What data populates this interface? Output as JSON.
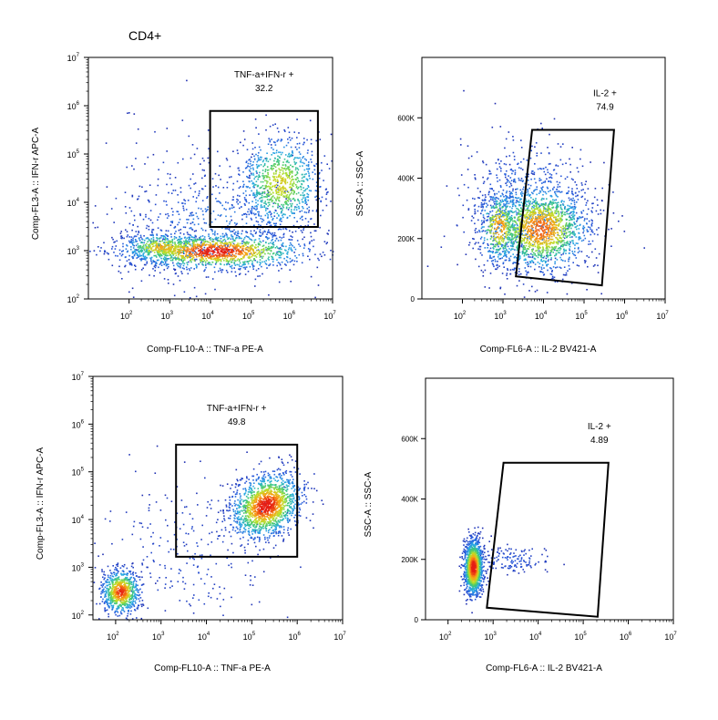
{
  "figure": {
    "title": "CD4+"
  },
  "chart_data": [
    {
      "id": "p1",
      "type": "scatter",
      "subtype": "flow-cytometry-pseudocolor",
      "xlabel": "Comp-FL10-A :: TNF-a PE-A",
      "ylabel": "Comp-FL3-A :: IFN-r APC-A",
      "xscale": "log",
      "yscale": "log",
      "xlim": [
        1,
        7
      ],
      "ylim": [
        2,
        7
      ],
      "x_ticks": [
        {
          "base": "10",
          "exp": "2"
        },
        {
          "base": "10",
          "exp": "3"
        },
        {
          "base": "10",
          "exp": "4"
        },
        {
          "base": "10",
          "exp": "5"
        },
        {
          "base": "10",
          "exp": "6"
        },
        {
          "base": "10",
          "exp": "7"
        }
      ],
      "x_tick_values": [
        2,
        3,
        4,
        5,
        6,
        7
      ],
      "y_ticks": [
        {
          "base": "10",
          "exp": "2"
        },
        {
          "base": "10",
          "exp": "3"
        },
        {
          "base": "10",
          "exp": "4"
        },
        {
          "base": "10",
          "exp": "5"
        },
        {
          "base": "10",
          "exp": "6"
        },
        {
          "base": "10",
          "exp": "7"
        }
      ],
      "y_tick_values": [
        2,
        3,
        4,
        5,
        6,
        7
      ],
      "gate": {
        "name": "TNF-a+IFN-r +",
        "value": "32.2",
        "shape": "rectangle",
        "vertices": [
          [
            3.99,
            5.89
          ],
          [
            6.64,
            5.89
          ],
          [
            6.64,
            3.49
          ],
          [
            3.99,
            3.49
          ]
        ]
      },
      "populations": [
        {
          "cx": 4.1,
          "cy": 3.0,
          "sx": 1.1,
          "sy": 0.18,
          "n": 1300,
          "peak": 1.0
        },
        {
          "cx": 2.8,
          "cy": 3.08,
          "sx": 0.5,
          "sy": 0.15,
          "n": 420,
          "peak": 0.8
        },
        {
          "cx": 5.7,
          "cy": 4.4,
          "sx": 0.5,
          "sy": 0.48,
          "n": 900,
          "peak": 0.72
        },
        {
          "cx": 4.2,
          "cy": 3.5,
          "sx": 1.3,
          "sy": 0.6,
          "n": 520,
          "peak": 0.25
        },
        {
          "cx": 3.5,
          "cy": 3.8,
          "sx": 1.4,
          "sy": 1.1,
          "n": 140,
          "peak": 0.1
        }
      ]
    },
    {
      "id": "p2",
      "type": "scatter",
      "subtype": "flow-cytometry-pseudocolor",
      "xlabel": "Comp-FL6-A :: IL-2 BV421-A",
      "ylabel": "SSC-A :: SSC-A",
      "xscale": "log",
      "yscale": "linear",
      "xlim": [
        1,
        7
      ],
      "ylim": [
        0,
        800000
      ],
      "x_ticks": [
        {
          "base": "10",
          "exp": "2"
        },
        {
          "base": "10",
          "exp": "3"
        },
        {
          "base": "10",
          "exp": "4"
        },
        {
          "base": "10",
          "exp": "5"
        },
        {
          "base": "10",
          "exp": "6"
        },
        {
          "base": "10",
          "exp": "7"
        }
      ],
      "x_tick_values": [
        2,
        3,
        4,
        5,
        6,
        7
      ],
      "y_ticks": [
        "0",
        "200K",
        "400K",
        "600K"
      ],
      "y_tick_values": [
        0,
        200000,
        400000,
        600000
      ],
      "gate": {
        "name": "IL-2 +",
        "value": "74.9",
        "shape": "polygon",
        "vertices": [
          [
            3.72,
            560000
          ],
          [
            5.74,
            560000
          ],
          [
            5.44,
            45000
          ],
          [
            3.32,
            75000
          ]
        ]
      },
      "populations": [
        {
          "cx": 3.9,
          "cy": 235000,
          "sx": 0.6,
          "sy": 70000,
          "n": 1500,
          "peak": 0.9
        },
        {
          "cx": 2.9,
          "cy": 240000,
          "sx": 0.25,
          "sy": 60000,
          "n": 400,
          "peak": 0.85
        },
        {
          "cx": 3.6,
          "cy": 300000,
          "sx": 0.8,
          "sy": 110000,
          "n": 700,
          "peak": 0.3
        }
      ]
    },
    {
      "id": "p3",
      "type": "scatter",
      "subtype": "flow-cytometry-pseudocolor",
      "xlabel": "Comp-FL10-A :: TNF-a PE-A",
      "ylabel": "Comp-FL3-A :: IFN-r APC-A",
      "xscale": "log",
      "yscale": "log",
      "xlim": [
        1.5,
        7
      ],
      "ylim": [
        1.9,
        7
      ],
      "x_ticks": [
        {
          "base": "10",
          "exp": "2"
        },
        {
          "base": "10",
          "exp": "3"
        },
        {
          "base": "10",
          "exp": "4"
        },
        {
          "base": "10",
          "exp": "5"
        },
        {
          "base": "10",
          "exp": "6"
        },
        {
          "base": "10",
          "exp": "7"
        }
      ],
      "x_tick_values": [
        2,
        3,
        4,
        5,
        6,
        7
      ],
      "y_ticks": [
        {
          "base": "10",
          "exp": "2"
        },
        {
          "base": "10",
          "exp": "3"
        },
        {
          "base": "10",
          "exp": "4"
        },
        {
          "base": "10",
          "exp": "5"
        },
        {
          "base": "10",
          "exp": "6"
        },
        {
          "base": "10",
          "exp": "7"
        }
      ],
      "y_tick_values": [
        2,
        3,
        4,
        5,
        6,
        7
      ],
      "gate": {
        "name": "TNF-a+IFN-r +",
        "value": "49.8",
        "shape": "rectangle",
        "vertices": [
          [
            3.33,
            5.57
          ],
          [
            6.0,
            5.57
          ],
          [
            6.0,
            3.22
          ],
          [
            3.33,
            3.22
          ]
        ]
      },
      "populations": [
        {
          "cx": 5.3,
          "cy": 4.3,
          "sx": 0.4,
          "sy": 0.3,
          "n": 1500,
          "peak": 1.0,
          "rot": 0.55
        },
        {
          "cx": 2.1,
          "cy": 2.5,
          "sx": 0.2,
          "sy": 0.22,
          "n": 800,
          "peak": 0.95
        },
        {
          "cx": 3.6,
          "cy": 3.2,
          "sx": 1.1,
          "sy": 0.9,
          "n": 260,
          "peak": 0.1
        }
      ]
    },
    {
      "id": "p4",
      "type": "scatter",
      "subtype": "flow-cytometry-pseudocolor",
      "xlabel": "Comp-FL6-A :: IL-2 BV421-A",
      "ylabel": "SSC-A :: SSC-A",
      "xscale": "log",
      "yscale": "linear",
      "xlim": [
        1.5,
        7
      ],
      "ylim": [
        0,
        800000
      ],
      "x_ticks": [
        {
          "base": "10",
          "exp": "2"
        },
        {
          "base": "10",
          "exp": "3"
        },
        {
          "base": "10",
          "exp": "4"
        },
        {
          "base": "10",
          "exp": "5"
        },
        {
          "base": "10",
          "exp": "6"
        },
        {
          "base": "10",
          "exp": "7"
        }
      ],
      "x_tick_values": [
        2,
        3,
        4,
        5,
        6,
        7
      ],
      "y_ticks": [
        "0",
        "200K",
        "400K",
        "600K"
      ],
      "y_tick_values": [
        0,
        200000,
        400000,
        600000
      ],
      "gate": {
        "name": "IL-2 +",
        "value": "4.89",
        "shape": "polygon",
        "vertices": [
          [
            3.23,
            520000
          ],
          [
            5.56,
            520000
          ],
          [
            5.32,
            10000
          ],
          [
            2.86,
            40000
          ]
        ]
      },
      "populations": [
        {
          "cx": 2.55,
          "cy": 175000,
          "sx": 0.1,
          "sy": 45000,
          "n": 1400,
          "peak": 1.0
        },
        {
          "cx": 3.4,
          "cy": 200000,
          "sx": 0.45,
          "sy": 25000,
          "n": 140,
          "peak": 0.15
        }
      ]
    }
  ]
}
